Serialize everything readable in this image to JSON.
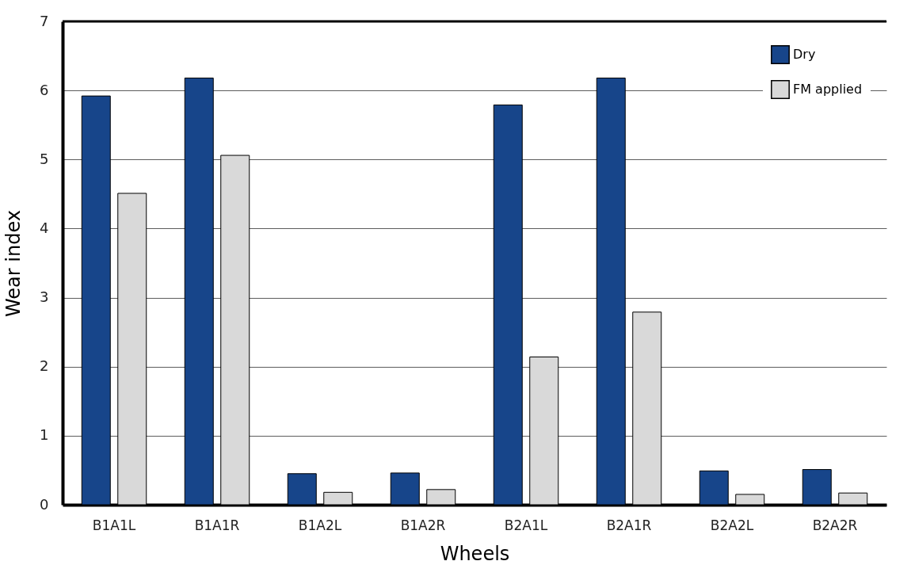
{
  "chart_data": {
    "type": "bar",
    "xlabel": "Wheels",
    "ylabel": "Wear index",
    "categories": [
      "B1A1L",
      "B1A1R",
      "B1A2L",
      "B1A2R",
      "B2A1L",
      "B2A1R",
      "B2A2L",
      "B2A2R"
    ],
    "series": [
      {
        "name": "Dry",
        "color": "#17458a",
        "values": [
          5.92,
          6.18,
          0.45,
          0.46,
          5.79,
          6.18,
          0.49,
          0.51
        ]
      },
      {
        "name": "FM applied",
        "color": "#d9d9d9",
        "values": [
          4.51,
          5.06,
          0.18,
          0.22,
          2.14,
          2.79,
          0.15,
          0.17
        ]
      }
    ],
    "ylim": [
      0,
      7
    ],
    "yticks": [
      0,
      1,
      2,
      3,
      4,
      5,
      6,
      7
    ],
    "grid": "y",
    "legend": "top right"
  }
}
